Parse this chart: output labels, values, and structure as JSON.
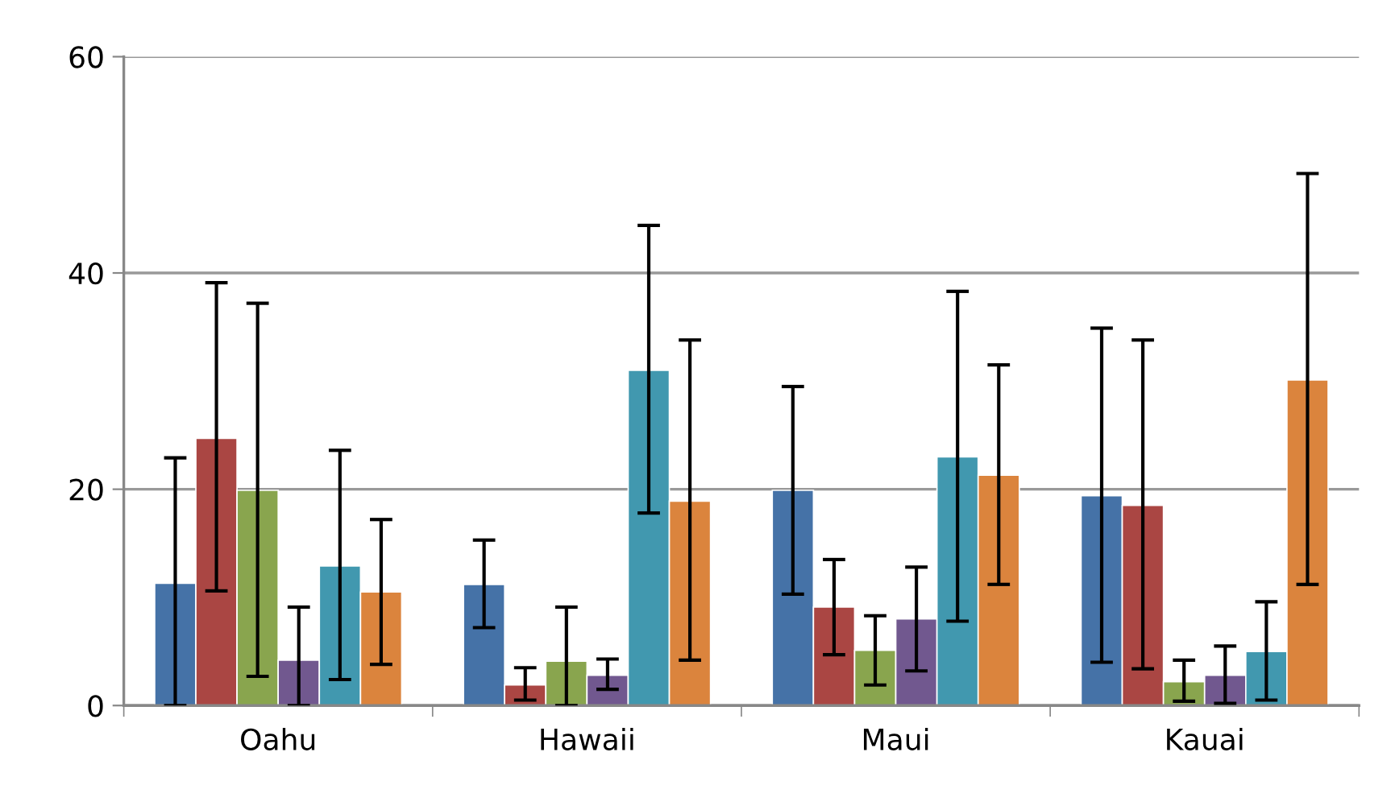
{
  "chart_data": {
    "type": "bar",
    "categories": [
      "Oahu",
      "Hawaii",
      "Maui",
      "Kauai"
    ],
    "ylim": [
      0,
      60
    ],
    "yticks": [
      0,
      20,
      40,
      60
    ],
    "grid": "y",
    "legend": false,
    "series": [
      {
        "color": "#4572a7",
        "values": [
          11.3,
          11.2,
          19.9,
          19.4
        ],
        "errors": [
          [
            0,
            22.9
          ],
          [
            7.2,
            15.3
          ],
          [
            10.3,
            29.5
          ],
          [
            4.0,
            34.9
          ]
        ]
      },
      {
        "color": "#aa4643",
        "values": [
          24.7,
          1.9,
          9.1,
          18.5
        ],
        "errors": [
          [
            10.6,
            39.1
          ],
          [
            0.5,
            3.5
          ],
          [
            4.7,
            13.5
          ],
          [
            3.4,
            33.8
          ]
        ]
      },
      {
        "color": "#89a54e",
        "values": [
          19.9,
          4.1,
          5.1,
          2.2
        ],
        "errors": [
          [
            2.7,
            37.2
          ],
          [
            0,
            9.1
          ],
          [
            1.9,
            8.3
          ],
          [
            0.4,
            4.2
          ]
        ]
      },
      {
        "color": "#71588f",
        "values": [
          4.2,
          2.8,
          8.0,
          2.8
        ],
        "errors": [
          [
            0,
            9.1
          ],
          [
            1.5,
            4.3
          ],
          [
            3.2,
            12.8
          ],
          [
            0.2,
            5.5
          ]
        ]
      },
      {
        "color": "#4198af",
        "values": [
          12.9,
          31.0,
          23.0,
          5.0
        ],
        "errors": [
          [
            2.4,
            23.6
          ],
          [
            17.8,
            44.4
          ],
          [
            7.8,
            38.3
          ],
          [
            0.5,
            9.6
          ]
        ]
      },
      {
        "color": "#db843d",
        "values": [
          10.5,
          18.9,
          21.3,
          30.1
        ],
        "errors": [
          [
            3.8,
            17.2
          ],
          [
            4.2,
            33.8
          ],
          [
            11.2,
            31.5
          ],
          [
            11.2,
            49.2
          ]
        ]
      }
    ]
  }
}
